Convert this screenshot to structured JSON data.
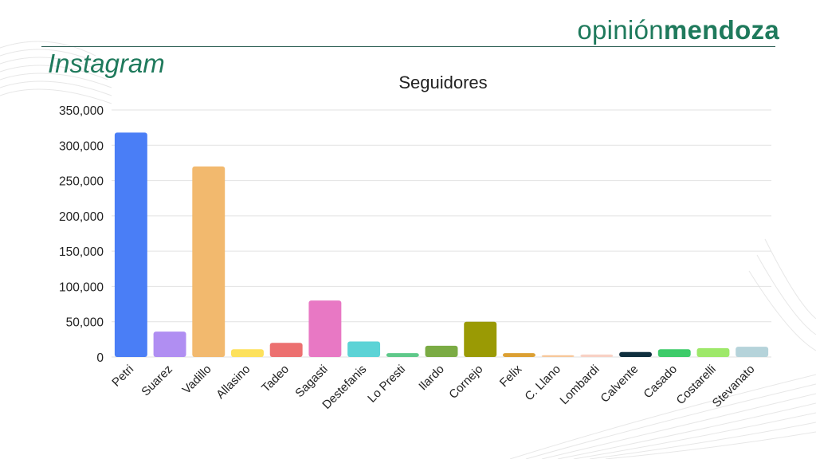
{
  "brand": {
    "light": "opinión",
    "bold": "mendoza",
    "color": "#1f7a5c"
  },
  "section_title": "Instagram",
  "chart_data": {
    "type": "bar",
    "title": "Seguidores",
    "xlabel": "",
    "ylabel": "",
    "ylim": [
      0,
      350000
    ],
    "yticks": [
      "0",
      "50,000",
      "100,000",
      "150,000",
      "200,000",
      "250,000",
      "300,000",
      "350,000"
    ],
    "grid": true,
    "legend": "none",
    "categories": [
      "Petri",
      "Suarez",
      "Vadillo",
      "Allasino",
      "Tadeo",
      "Sagasti",
      "Destefanis",
      "Lo Presti",
      "Ilardo",
      "Cornejo",
      "Felix",
      "C. Llano",
      "Lombardi",
      "Calvente",
      "Casado",
      "Costarelli",
      "Stevanato"
    ],
    "values": [
      318000,
      36000,
      270000,
      11000,
      20000,
      80000,
      22000,
      5500,
      16000,
      50000,
      5500,
      2500,
      3500,
      7000,
      11000,
      12500,
      14500
    ],
    "colors": [
      "#4a7ef6",
      "#b08ef2",
      "#f2b96e",
      "#fde15c",
      "#ec7070",
      "#e878c4",
      "#5cd3d6",
      "#5fc98a",
      "#7bab44",
      "#9a9a04",
      "#dca033",
      "#f7c79a",
      "#f8d1c4",
      "#0f2f3e",
      "#3ecb6a",
      "#9ee86a",
      "#b5d3da"
    ]
  }
}
